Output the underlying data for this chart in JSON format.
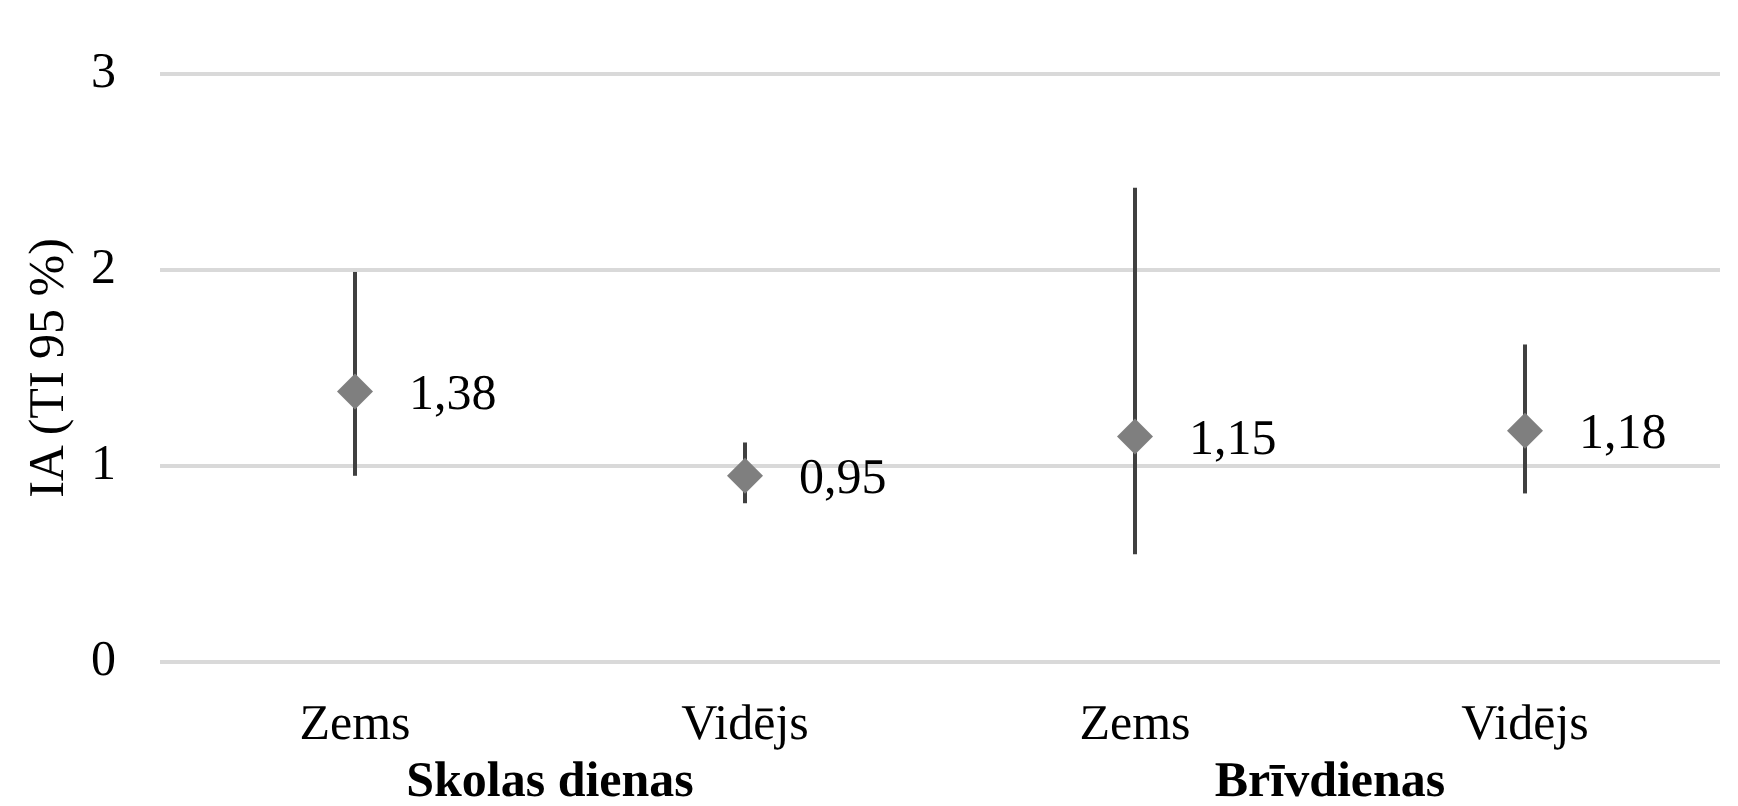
{
  "chart_data": {
    "type": "scatter",
    "ylabel": "IA (TI 95 %)",
    "categories": [
      "Zems",
      "Vidējs",
      "Zems",
      "Vidējs"
    ],
    "values": [
      1.38,
      0.95,
      1.15,
      1.18
    ],
    "color": "#7f7f7f",
    "errors": [
      [
        0.95,
        1.99
      ],
      [
        0.81,
        1.12
      ],
      [
        0.55,
        2.42
      ],
      [
        0.86,
        1.62
      ]
    ],
    "value_labels": [
      "1,38",
      "0,95",
      "1,15",
      "1,18"
    ],
    "annotations": [
      "Skolas dienas",
      "Brīvdienas"
    ],
    "ylim": [
      0,
      3
    ],
    "yticks": [
      0,
      1,
      2,
      3
    ],
    "grid": "y",
    "marker": "diamond"
  }
}
